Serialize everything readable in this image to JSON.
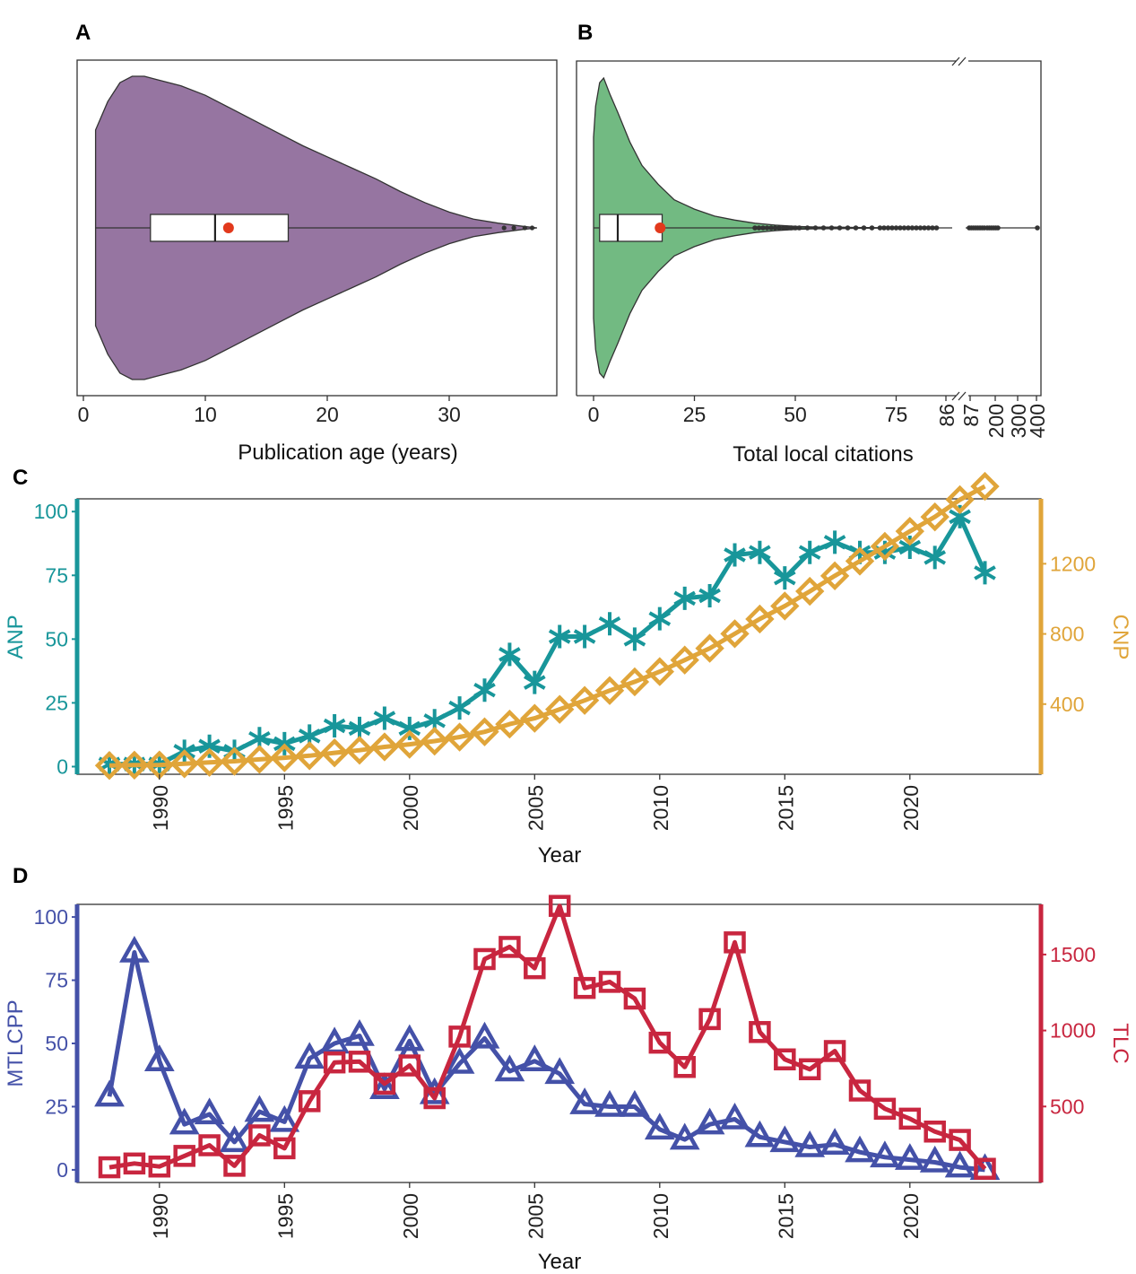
{
  "chart_data": [
    {
      "panel": "A",
      "type": "violin",
      "xlabel": "Publication age (years)",
      "xlim": [
        -1,
        38
      ],
      "xticks": [
        "0",
        "10",
        "20",
        "30"
      ],
      "fill_color": "#9675a1",
      "box": {
        "min": 1,
        "q1": 5.5,
        "median": 10.8,
        "q3": 16.8,
        "max": 33.5,
        "mean": 11.9
      },
      "outliers": [
        34.5,
        35.3,
        36.2,
        36.8
      ],
      "density": [
        [
          1,
          0.62
        ],
        [
          2,
          0.8
        ],
        [
          3,
          0.92
        ],
        [
          4,
          0.96
        ],
        [
          5,
          0.96
        ],
        [
          6,
          0.94
        ],
        [
          8,
          0.9
        ],
        [
          10,
          0.84
        ],
        [
          12,
          0.76
        ],
        [
          14,
          0.68
        ],
        [
          16,
          0.6
        ],
        [
          18,
          0.52
        ],
        [
          20,
          0.45
        ],
        [
          22,
          0.38
        ],
        [
          24,
          0.31
        ],
        [
          26,
          0.23
        ],
        [
          28,
          0.16
        ],
        [
          30,
          0.1
        ],
        [
          32,
          0.055
        ],
        [
          34,
          0.03
        ],
        [
          36,
          0.01
        ],
        [
          37.2,
          0
        ]
      ],
      "mean_color": "#e2391c"
    },
    {
      "panel": "B",
      "type": "violin",
      "xlabel": "Total local citations",
      "xticks": [
        "0",
        "25",
        "50",
        "75",
        "86",
        "87",
        "200",
        "300",
        "400"
      ],
      "axis_break": "after 86",
      "fill_color": "#72ba82",
      "box": {
        "min": 0,
        "q1": 1.5,
        "median": 6,
        "q3": 17,
        "mean": 16.5
      },
      "density": [
        [
          0,
          0.58
        ],
        [
          0.5,
          0.78
        ],
        [
          1.5,
          0.93
        ],
        [
          2.5,
          0.96
        ],
        [
          4,
          0.86
        ],
        [
          6,
          0.74
        ],
        [
          9,
          0.55
        ],
        [
          12,
          0.4
        ],
        [
          16,
          0.28
        ],
        [
          20,
          0.18
        ],
        [
          25,
          0.12
        ],
        [
          30,
          0.075
        ],
        [
          35,
          0.05
        ],
        [
          40,
          0.03
        ],
        [
          45,
          0.018
        ],
        [
          50,
          0.01
        ],
        [
          55,
          0.006
        ],
        [
          60,
          0.005
        ],
        [
          65,
          0.003
        ],
        [
          70,
          0.001
        ],
        [
          75,
          0
        ]
      ],
      "outliers_main": [
        40,
        41,
        42,
        43,
        44,
        45,
        46,
        47,
        48,
        49,
        50,
        51,
        53,
        55,
        57,
        59,
        61,
        63,
        65,
        67,
        69,
        71,
        72,
        73,
        74,
        75,
        76,
        77,
        78,
        79,
        80,
        81,
        82,
        83,
        84,
        85
      ],
      "outliers_break": [
        0.05,
        0.08,
        0.11,
        0.14,
        0.17,
        0.2,
        0.23,
        0.26,
        0.3,
        0.33,
        0.36,
        0.39,
        0.42,
        0.45,
        1.0
      ],
      "mean_color": "#e2391c"
    },
    {
      "panel": "C",
      "type": "line",
      "xlabel": "Year",
      "xticks": [
        1990,
        1995,
        2000,
        2005,
        2010,
        2015,
        2020
      ],
      "x": [
        1988,
        1989,
        1990,
        1991,
        1992,
        1993,
        1994,
        1995,
        1996,
        1997,
        1998,
        1999,
        2000,
        2001,
        2002,
        2003,
        2004,
        2005,
        2006,
        2007,
        2008,
        2009,
        2010,
        2011,
        2012,
        2013,
        2014,
        2015,
        2016,
        2017,
        2018,
        2019,
        2020,
        2021,
        2022,
        2023
      ],
      "series": [
        {
          "name": "ANP",
          "axis": "left",
          "ylim": [
            -3,
            105
          ],
          "yticks": [
            0,
            25,
            50,
            75,
            100
          ],
          "color": "#18969a",
          "marker": "asterisk",
          "values": [
            1,
            1,
            1,
            6,
            8,
            6,
            11,
            9,
            12,
            16,
            15,
            19,
            15,
            18,
            23,
            30,
            44,
            33,
            51,
            51,
            56,
            50,
            58,
            66,
            67,
            83,
            84,
            74,
            84,
            88,
            84,
            84,
            86,
            82,
            98,
            76
          ]
        },
        {
          "name": "CNP",
          "axis": "right",
          "ylim": [
            0,
            1570
          ],
          "yticks": [
            400,
            800,
            1200
          ],
          "color": "#e0a53a",
          "marker": "diamond",
          "values": [
            50,
            52,
            53,
            60,
            68,
            74,
            85,
            94,
            106,
            122,
            137,
            156,
            171,
            189,
            212,
            242,
            286,
            319,
            370,
            421,
            477,
            527,
            585,
            651,
            718,
            801,
            885,
            959,
            1043,
            1131,
            1215,
            1299,
            1385,
            1467,
            1565,
            1641
          ]
        }
      ]
    },
    {
      "panel": "D",
      "type": "line",
      "xlabel": "Year",
      "xticks": [
        1990,
        1995,
        2000,
        2005,
        2010,
        2015,
        2020
      ],
      "x": [
        1988,
        1989,
        1990,
        1991,
        1992,
        1993,
        1994,
        1995,
        1996,
        1997,
        1998,
        1999,
        2000,
        2001,
        2002,
        2003,
        2004,
        2005,
        2006,
        2007,
        2008,
        2009,
        2010,
        2011,
        2012,
        2013,
        2014,
        2015,
        2016,
        2017,
        2018,
        2019,
        2020,
        2021,
        2022,
        2023
      ],
      "series": [
        {
          "name": "MTLCPP",
          "axis": "left",
          "ylim": [
            -5,
            105
          ],
          "yticks": [
            0,
            25,
            50,
            75,
            100
          ],
          "color": "#4451a8",
          "marker": "triangle",
          "values": [
            29,
            86,
            43,
            18,
            22,
            11,
            23,
            19,
            44,
            50,
            53,
            32,
            51,
            30,
            42,
            52,
            39,
            43,
            38,
            26,
            25,
            25,
            16,
            12,
            18,
            20,
            13,
            11,
            9,
            10,
            7,
            5,
            4,
            3,
            1,
            0
          ]
        },
        {
          "name": "TLC",
          "axis": "right",
          "ylim": [
            0,
            1830
          ],
          "yticks": [
            500,
            1000,
            1500
          ],
          "color": "#c8263f",
          "marker": "square",
          "values": [
            100,
            125,
            105,
            175,
            245,
            110,
            310,
            225,
            535,
            790,
            795,
            650,
            770,
            555,
            960,
            1470,
            1550,
            1410,
            1820,
            1280,
            1320,
            1210,
            920,
            760,
            1075,
            1580,
            990,
            810,
            745,
            865,
            605,
            485,
            420,
            335,
            280,
            90
          ]
        }
      ]
    }
  ]
}
